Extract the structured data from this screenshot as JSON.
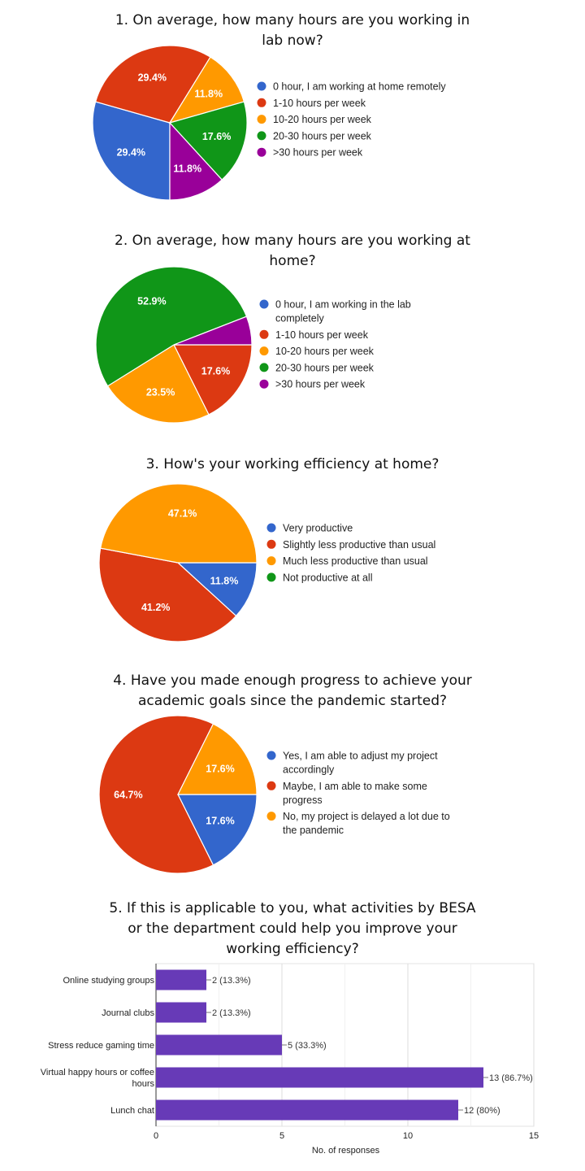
{
  "colors": {
    "blue": "#3366cc",
    "red": "#dc3912",
    "orange": "#ff9900",
    "green": "#109618",
    "purple": "#990099",
    "bar": "#673ab7"
  },
  "chart_data": [
    {
      "type": "pie",
      "title_lines": [
        "1. On average, how many hours are you working in",
        "lab now?"
      ],
      "legend_placement": "right",
      "categories": [
        [
          "0 hour, I am working at home remotely"
        ],
        [
          "1-10 hours per week"
        ],
        [
          "10-20 hours per week"
        ],
        [
          "20-30 hours per week"
        ],
        [
          ">30 hours per week"
        ]
      ],
      "values": [
        29.4,
        29.4,
        11.8,
        17.6,
        11.8
      ],
      "data_labels": [
        "29.4%",
        "29.4%",
        "11.8%",
        "17.6%",
        "11.8%"
      ],
      "colors": [
        "#3366cc",
        "#dc3912",
        "#ff9900",
        "#109618",
        "#990099"
      ]
    },
    {
      "type": "pie",
      "title_lines": [
        "2. On average, how many hours are you working at",
        "home?"
      ],
      "legend_placement": "right",
      "categories": [
        [
          "0 hour, I am working in the lab",
          "completely"
        ],
        [
          "1-10 hours per week"
        ],
        [
          "10-20 hours per week"
        ],
        [
          "20-30 hours per week"
        ],
        [
          ">30 hours per week"
        ]
      ],
      "values": [
        0,
        17.6,
        23.5,
        52.9,
        5.9
      ],
      "data_labels": [
        "",
        "17.6%",
        "23.5%",
        "52.9%",
        ""
      ],
      "colors": [
        "#3366cc",
        "#dc3912",
        "#ff9900",
        "#109618",
        "#990099"
      ]
    },
    {
      "type": "pie",
      "title_lines": [
        "3. How's your working efficiency at home?"
      ],
      "legend_placement": "right",
      "categories": [
        [
          "Very productive"
        ],
        [
          "Slightly less productive than usual"
        ],
        [
          "Much less productive than usual"
        ],
        [
          "Not productive at all"
        ]
      ],
      "values": [
        11.8,
        41.2,
        47.1,
        0
      ],
      "data_labels": [
        "11.8%",
        "41.2%",
        "47.1%",
        ""
      ],
      "colors": [
        "#3366cc",
        "#dc3912",
        "#ff9900",
        "#109618"
      ]
    },
    {
      "type": "pie",
      "title_lines": [
        "4. Have you made enough progress to achieve your",
        "academic goals since the pandemic started?"
      ],
      "legend_placement": "right",
      "categories": [
        [
          "Yes, I am able to adjust my project",
          "accordingly"
        ],
        [
          "Maybe, I am able to make some",
          "progress"
        ],
        [
          "No, my project is delayed a lot due to",
          "the pandemic"
        ]
      ],
      "values": [
        17.6,
        64.7,
        17.6
      ],
      "data_labels": [
        "17.6%",
        "64.7%",
        "17.6%"
      ],
      "colors": [
        "#3366cc",
        "#dc3912",
        "#ff9900"
      ]
    },
    {
      "type": "bar",
      "orientation": "horizontal",
      "title_lines": [
        "5. If this is applicable to you, what activities by BESA",
        "or the department  could help you improve your",
        "working efficiency?"
      ],
      "categories": [
        [
          "Online studying groups"
        ],
        [
          "Journal clubs"
        ],
        [
          "Stress reduce gaming time"
        ],
        [
          "Virtual happy hours or coffee",
          "hours"
        ],
        [
          "Lunch chat"
        ]
      ],
      "values": [
        2,
        2,
        5,
        13,
        12
      ],
      "data_labels": [
        "2 (13.3%)",
        "2 (13.3%)",
        "5 (33.3%)",
        "13 (86.7%)",
        "12 (80%)"
      ],
      "xlabel": "No. of responses",
      "xlim": [
        0,
        15
      ],
      "xticks": [
        "0",
        "5",
        "10",
        "15"
      ],
      "grid": true
    }
  ]
}
